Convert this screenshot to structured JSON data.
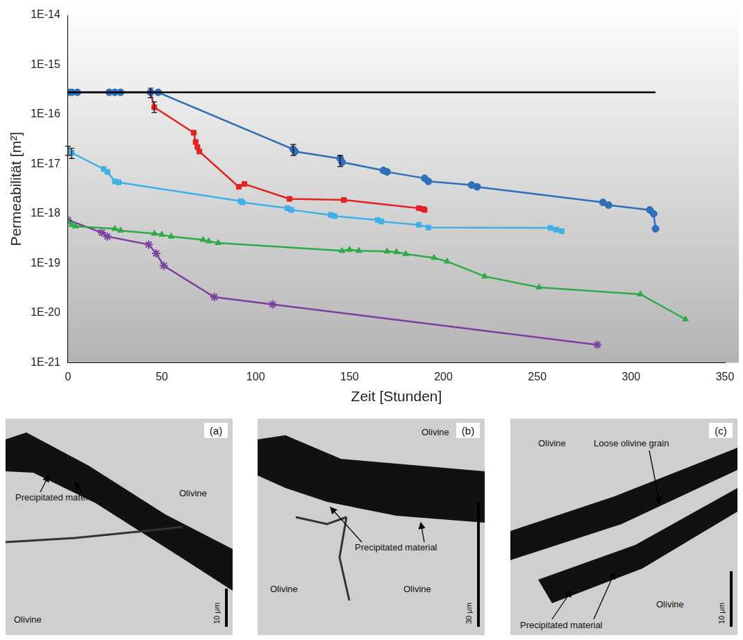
{
  "chart_data": {
    "type": "line",
    "y_label": "Permeabilität [m²]",
    "x_label": "Zeit [Stunden]",
    "log": "y",
    "grid": false,
    "xlim": [
      0,
      350
    ],
    "xticks": [
      0,
      50,
      100,
      150,
      200,
      250,
      300,
      350
    ],
    "ylim": [
      1e-21,
      1e-14
    ],
    "yticks": [
      {
        "value": 1e-21,
        "label": "1E-21"
      },
      {
        "value": 1e-20,
        "label": "1E-20"
      },
      {
        "value": 1e-19,
        "label": "1E-19"
      },
      {
        "value": 1e-18,
        "label": "1E-18"
      },
      {
        "value": 1e-17,
        "label": "1E-17"
      },
      {
        "value": 1e-16,
        "label": "1E-16"
      },
      {
        "value": 1e-15,
        "label": "1E-15"
      },
      {
        "value": 1e-14,
        "label": "1E-14"
      }
    ],
    "series": [
      {
        "color": "#000000",
        "marker": "none",
        "x": [
          0,
          313
        ],
        "values": [
          2.8e-16,
          2.8e-16
        ]
      },
      {
        "color": "#2f6fba",
        "marker": "circle",
        "x": [
          0,
          2,
          5,
          22,
          25,
          28,
          44,
          48,
          120,
          121,
          145,
          146,
          168,
          170,
          190,
          192,
          215,
          218,
          285,
          288,
          310,
          312,
          313
        ],
        "values": [
          2.8e-16,
          2.8e-16,
          2.8e-16,
          2.8e-16,
          2.8e-16,
          2.8e-16,
          2.8e-16,
          2.8e-16,
          2e-17,
          1.8e-17,
          1.3e-17,
          1.1e-17,
          7.5e-18,
          7e-18,
          5.2e-18,
          4.5e-18,
          3.8e-18,
          3.5e-18,
          1.7e-18,
          1.5e-18,
          1.2e-18,
          1e-18,
          5e-19
        ],
        "errors": [
          null,
          null,
          null,
          null,
          null,
          null,
          null,
          null,
          [
            1.5e-17,
            2.5e-17
          ],
          null,
          [
            9e-18,
            1.5e-17
          ],
          null,
          null,
          null,
          null,
          null,
          null,
          null,
          null,
          null,
          null,
          null,
          null
        ]
      },
      {
        "color": "#e32222",
        "marker": "square",
        "x": [
          0,
          2,
          44,
          46,
          67,
          68,
          69,
          70,
          91,
          94,
          118,
          147,
          187,
          189,
          190
        ],
        "values": [
          2.8e-16,
          2.8e-16,
          2.8e-16,
          1.4e-16,
          4.3e-17,
          2.8e-17,
          2.2e-17,
          1.8e-17,
          3.5e-18,
          4e-18,
          2e-18,
          1.9e-18,
          1.3e-18,
          1.25e-18,
          1.2e-18
        ],
        "errors": [
          null,
          null,
          [
            2.2e-16,
            3.4e-16
          ],
          [
            1.1e-16,
            1.8e-16
          ],
          null,
          null,
          null,
          null,
          null,
          null,
          null,
          null,
          null,
          null,
          null
        ]
      },
      {
        "color": "#3fb0e8",
        "marker": "square",
        "x": [
          0,
          2,
          19,
          21,
          25,
          27,
          92,
          93,
          117,
          119,
          140,
          142,
          165,
          167,
          187,
          192,
          257,
          260,
          263
        ],
        "values": [
          1.9e-17,
          1.7e-17,
          8e-18,
          7e-18,
          4.5e-18,
          4.3e-18,
          1.8e-18,
          1.7e-18,
          1.3e-18,
          1.2e-18,
          9.5e-19,
          9e-19,
          7.5e-19,
          7e-19,
          6e-19,
          5.3e-19,
          5.2e-19,
          4.8e-19,
          4.5e-19
        ],
        "errors": [
          [
            1.5e-17,
            2.3e-17
          ],
          [
            1.3e-17,
            2.1e-17
          ],
          null,
          null,
          null,
          null,
          null,
          null,
          null,
          null,
          null,
          null,
          null,
          null,
          null,
          null,
          null,
          null,
          null
        ]
      },
      {
        "color": "#2eaa48",
        "marker": "triangle",
        "x": [
          0,
          2,
          4,
          25,
          28,
          46,
          50,
          55,
          72,
          75,
          80,
          146,
          150,
          155,
          170,
          175,
          180,
          195,
          202,
          222,
          251,
          305,
          329
        ],
        "values": [
          7e-19,
          6e-19,
          5.6e-19,
          5e-19,
          4.6e-19,
          4e-19,
          3.8e-19,
          3.5e-19,
          3e-19,
          2.8e-19,
          2.6e-19,
          1.8e-19,
          1.9e-19,
          1.8e-19,
          1.75e-19,
          1.7e-19,
          1.55e-19,
          1.3e-19,
          1.1e-19,
          5.5e-20,
          3.3e-20,
          2.4e-20,
          7.5e-21
        ]
      },
      {
        "color": "#7a3fa0",
        "marker": "star",
        "x": [
          0,
          18,
          21,
          43,
          47,
          51,
          78,
          109,
          282
        ],
        "values": [
          7.5e-19,
          4.2e-19,
          3.5e-19,
          2.4e-19,
          1.6e-19,
          9e-20,
          2.1e-20,
          1.5e-20,
          2.3e-21
        ]
      }
    ]
  },
  "micrographs": [
    {
      "letter": "(a)",
      "labels": [
        "Precipitated material",
        "Olivine",
        "Olivine"
      ],
      "scale_bar": "10 µm"
    },
    {
      "letter": "(b)",
      "labels": [
        "Olivine",
        "Precipitated material",
        "Olivine",
        "Olivine"
      ],
      "scale_bar": "30 µm"
    },
    {
      "letter": "(c)",
      "labels": [
        "Olivine",
        "Loose olivine grain",
        "Precipitated material",
        "Olivine"
      ],
      "scale_bar": "10 µm"
    }
  ]
}
